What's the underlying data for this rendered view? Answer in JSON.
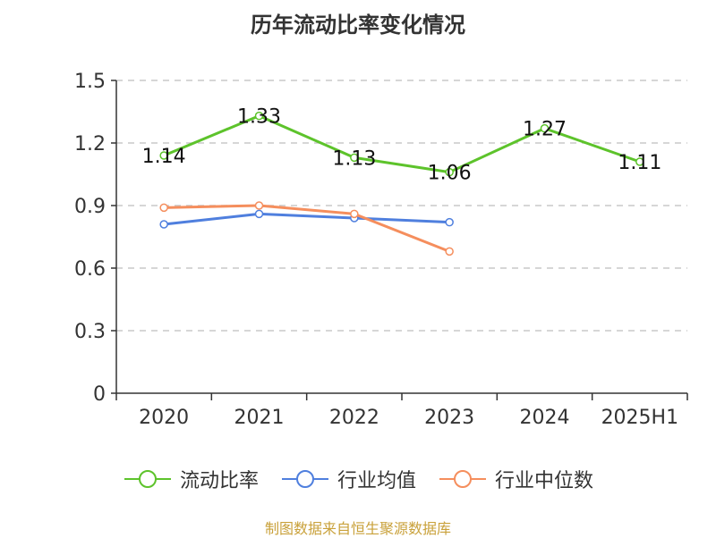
{
  "title": "历年流动比率变化情况",
  "source": "制图数据来自恒生聚源数据库",
  "chart_data": {
    "type": "line",
    "title": "历年流动比率变化情况",
    "categories": [
      "2020",
      "2021",
      "2022",
      "2023",
      "2024",
      "2025H1"
    ],
    "ylim": [
      0,
      1.5
    ],
    "yticks": [
      0,
      0.3,
      0.6,
      0.9,
      1.2,
      1.5
    ],
    "ytick_labels": [
      "0",
      "0.3",
      "0.6",
      "0.9",
      "1.2",
      "1.5"
    ],
    "grid": true,
    "legend_position": "bottom",
    "series": [
      {
        "name": "流动比率",
        "color": "#5dc32b",
        "values": [
          1.14,
          1.33,
          1.13,
          1.06,
          1.27,
          1.11
        ],
        "labels": [
          "1.14",
          "1.33",
          "1.13",
          "1.06",
          "1.27",
          "1.11"
        ]
      },
      {
        "name": "行业均值",
        "color": "#4f7fde",
        "values": [
          0.81,
          0.86,
          0.84,
          0.82,
          null,
          null
        ]
      },
      {
        "name": "行业中位数",
        "color": "#f58e5d",
        "values": [
          0.89,
          0.9,
          0.86,
          0.68,
          null,
          null
        ]
      }
    ]
  }
}
